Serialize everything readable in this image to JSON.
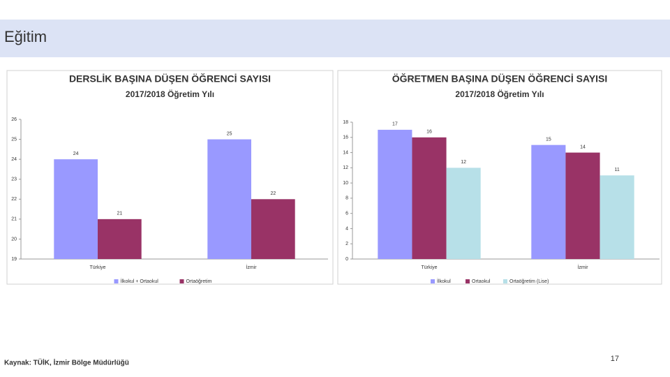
{
  "header": {
    "title": "Eğitim"
  },
  "footer": {
    "source": "Kaynak: TÜİK, İzmir Bölge Müdürlüğü",
    "page_number": "17"
  },
  "chart_data": [
    {
      "type": "bar",
      "title": "DERSLİK BAŞINA DÜŞEN ÖĞRENCİ SAYISI",
      "subtitle": "2017/2018 Öğretim Yılı",
      "categories": [
        "Türkiye",
        "İzmir"
      ],
      "series": [
        {
          "name": "İlkokul + Ortaokul",
          "color": "#9999ff",
          "values": [
            24,
            25
          ]
        },
        {
          "name": "Ortaöğretim",
          "color": "#993366",
          "values": [
            21,
            22
          ]
        }
      ],
      "ylim": [
        19,
        26
      ],
      "yticks": [
        19,
        20,
        21,
        22,
        23,
        24,
        25,
        26
      ],
      "legend": "bottom"
    },
    {
      "type": "bar",
      "title": "ÖĞRETMEN BAŞINA DÜŞEN ÖĞRENCİ SAYISI",
      "subtitle": "2017/2018 Öğretim Yılı",
      "categories": [
        "Türkiye",
        "İzmir"
      ],
      "series": [
        {
          "name": "İlkokul",
          "color": "#9999ff",
          "values": [
            17,
            15
          ]
        },
        {
          "name": "Ortaokul",
          "color": "#993366",
          "values": [
            16,
            14
          ]
        },
        {
          "name": "Ortaöğretim (Lise)",
          "color": "#b7e0e8",
          "values": [
            12,
            11
          ]
        }
      ],
      "ylim": [
        0,
        18
      ],
      "yticks": [
        0,
        2,
        4,
        6,
        8,
        10,
        12,
        14,
        16,
        18
      ],
      "legend": "bottom"
    }
  ]
}
